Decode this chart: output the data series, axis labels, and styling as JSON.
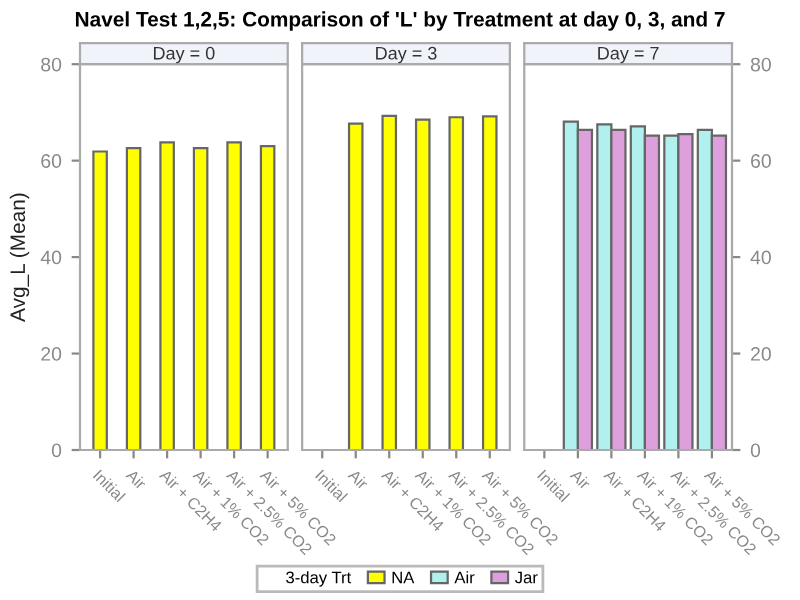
{
  "chart_data": [
    {
      "type": "bar",
      "title": "Navel Test 1,2,5: Comparison of 'L' by Treatment at day 0, 3, and 7",
      "subtitle": "Day = 0",
      "ylabel": "Avg_L (Mean)",
      "categories": [
        "Initial",
        "Air",
        "Air + C2H4",
        "Air + 1% CO2",
        "Air + 2.5% CO2",
        "Air + 5% CO2"
      ],
      "ylim": [
        0,
        80
      ],
      "yticks": [
        0,
        20,
        40,
        60,
        80
      ],
      "grid": false,
      "legend": "bottom",
      "legend_title": "3-day Trt",
      "series": [
        {
          "name": "NA",
          "color": "#ffff00",
          "values": [
            61.9,
            62.6,
            63.8,
            62.6,
            63.8,
            63.0
          ]
        }
      ]
    },
    {
      "type": "bar",
      "subtitle": "Day = 3",
      "categories": [
        "Initial",
        "Air",
        "Air + C2H4",
        "Air + 1% CO2",
        "Air + 2.5% CO2",
        "Air + 5% CO2"
      ],
      "ylim": [
        0,
        80
      ],
      "tick_labels": "x",
      "grid": false,
      "legend": "bottom",
      "series": [
        {
          "name": "NA",
          "color": "#ffff00",
          "values": [
            null,
            67.7,
            69.3,
            68.5,
            69.0,
            69.2
          ]
        }
      ]
    },
    {
      "type": "bar",
      "subtitle": "Day = 7",
      "categories": [
        "Initial",
        "Air",
        "Air + C2H4",
        "Air + 1% CO2",
        "Air + 2.5% CO2",
        "Air + 5% CO2"
      ],
      "ylim": [
        0,
        80
      ],
      "yticks": [
        0,
        20,
        40,
        60,
        80
      ],
      "grid": false,
      "legend": "bottom",
      "series": [
        {
          "name": "Air",
          "color": "#b0f0ee",
          "values": [
            null,
            68.1,
            67.5,
            67.1,
            65.2,
            66.4
          ]
        },
        {
          "name": "Jar",
          "color": "#dda0dd",
          "values": [
            null,
            66.4,
            66.4,
            65.2,
            65.5,
            65.2
          ]
        }
      ]
    }
  ]
}
